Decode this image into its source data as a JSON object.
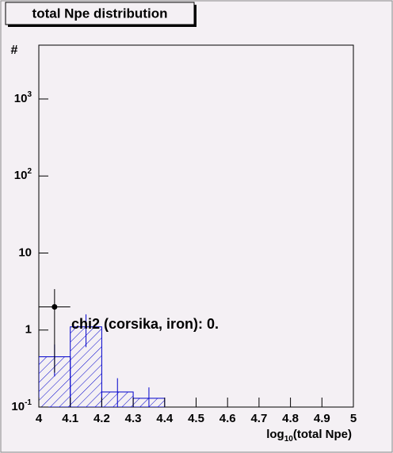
{
  "chart_data": {
    "type": "histogram",
    "title": "total Npe distribution",
    "y_label": "#",
    "x_label": {
      "main": "log",
      "sub": "10",
      "rest": "(total Npe)"
    },
    "annotation": "chi2 (corsika, iron): 0.",
    "xlim": [
      4,
      5
    ],
    "xticks": [
      4,
      4.1,
      4.2,
      4.3,
      4.4,
      4.5,
      4.6,
      4.7,
      4.8,
      4.9,
      5
    ],
    "ylim": [
      0.1,
      5000
    ],
    "log_y": true,
    "yticks": [
      {
        "value": 0.1,
        "label": "10",
        "exp": "-1"
      },
      1,
      10,
      {
        "value": 100,
        "label": "10",
        "exp": "2"
      },
      {
        "value": 1000,
        "label": "10",
        "exp": "3"
      }
    ],
    "histogram": {
      "color": "#0000cc",
      "bins": [
        4.0,
        4.1,
        4.2,
        4.3,
        4.4
      ],
      "values": [
        0.45,
        1.1,
        0.157,
        0.13
      ],
      "errors": [
        0.2,
        0.5,
        0.08,
        0.05
      ]
    },
    "points": {
      "color": "#000000",
      "bins": [
        4.0,
        4.1
      ],
      "x": [
        4.05
      ],
      "values": [
        2
      ],
      "errors_low": [
        1.72
      ],
      "errors_high": [
        1.4
      ]
    }
  }
}
